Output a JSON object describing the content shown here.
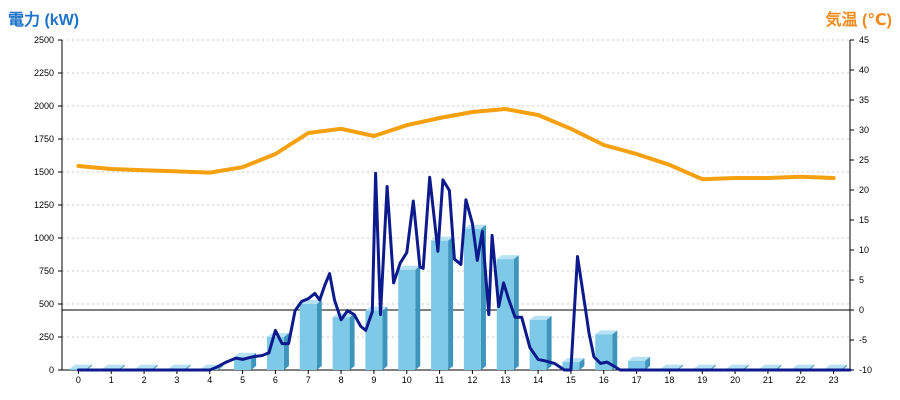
{
  "chart_data": {
    "type": "bar",
    "left_axis_title": "電力 (kW)",
    "right_axis_title": "気温 (℃)",
    "categories": [
      "0",
      "1",
      "2",
      "3",
      "4",
      "5",
      "6",
      "7",
      "8",
      "9",
      "10",
      "11",
      "12",
      "13",
      "14",
      "15",
      "16",
      "17",
      "18",
      "19",
      "20",
      "21",
      "22",
      "23"
    ],
    "y_left": {
      "min": 0,
      "max": 2500,
      "ticks": [
        0,
        250,
        500,
        750,
        1000,
        1250,
        1500,
        1750,
        2000,
        2250,
        2500
      ]
    },
    "y_right": {
      "min": -10,
      "max": 45,
      "ticks": [
        -10,
        -5,
        0,
        5,
        10,
        15,
        20,
        25,
        30,
        35,
        40,
        45
      ]
    },
    "grid": true,
    "series": [
      {
        "kind": "bar",
        "axis": "left",
        "color": "#7ec8e8",
        "values": [
          10,
          10,
          10,
          10,
          10,
          100,
          250,
          500,
          400,
          450,
          760,
          980,
          1070,
          840,
          380,
          60,
          270,
          70,
          10,
          10,
          10,
          10,
          10,
          10
        ]
      },
      {
        "kind": "line",
        "axis": "right",
        "color": "#f5a00f",
        "values": [
          24,
          23.5,
          23.3,
          23.1,
          22.9,
          23.8,
          26,
          29.5,
          30.2,
          29,
          30.8,
          32,
          33,
          33.5,
          32.5,
          30.2,
          27.5,
          26,
          24.2,
          21.8,
          22,
          22,
          22.2,
          22
        ]
      },
      {
        "kind": "line",
        "axis": "left",
        "color": "#0d1a8c",
        "x": [
          0,
          0.5,
          1,
          1.5,
          2,
          2.5,
          3,
          3.5,
          4,
          4.2,
          4.5,
          4.8,
          5,
          5.3,
          5.6,
          5.8,
          6.0,
          6.2,
          6.4,
          6.6,
          6.8,
          7.0,
          7.2,
          7.35,
          7.5,
          7.65,
          7.8,
          8.0,
          8.2,
          8.4,
          8.6,
          8.75,
          8.95,
          9.05,
          9.2,
          9.4,
          9.6,
          9.8,
          10.0,
          10.2,
          10.4,
          10.5,
          10.7,
          10.95,
          11.1,
          11.3,
          11.45,
          11.65,
          11.8,
          12.0,
          12.15,
          12.3,
          12.5,
          12.6,
          12.8,
          12.95,
          13.1,
          13.3,
          13.5,
          13.75,
          14.0,
          14.2,
          14.5,
          14.8,
          15.0,
          15.2,
          15.45,
          15.55,
          15.7,
          15.9,
          16.1,
          16.3,
          16.5,
          16.7,
          16.85,
          17.0,
          17.1,
          17.5,
          18,
          18.5,
          19,
          19.5,
          20,
          20.5,
          21,
          21.5,
          22,
          22.5,
          23,
          23.5
        ],
        "values": [
          0,
          0,
          0,
          0,
          0,
          0,
          0,
          0,
          0,
          20,
          60,
          90,
          80,
          100,
          110,
          130,
          300,
          200,
          200,
          450,
          520,
          540,
          580,
          530,
          640,
          730,
          530,
          380,
          450,
          420,
          330,
          300,
          440,
          1490,
          420,
          1390,
          660,
          810,
          890,
          1280,
          780,
          770,
          1460,
          900,
          1440,
          1360,
          840,
          800,
          1290,
          1110,
          830,
          1050,
          420,
          1020,
          480,
          660,
          540,
          400,
          400,
          170,
          80,
          70,
          50,
          0,
          0,
          860,
          450,
          280,
          100,
          50,
          60,
          30,
          0,
          0,
          0,
          0,
          0,
          0,
          0,
          0,
          0,
          0,
          0,
          0,
          0,
          0,
          0,
          0,
          0,
          0
        ]
      }
    ]
  }
}
